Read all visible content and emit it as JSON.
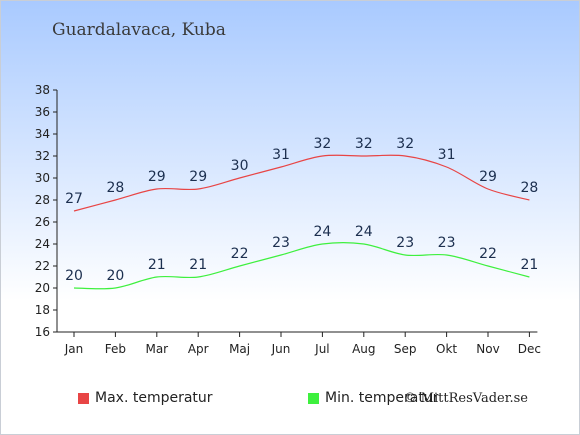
{
  "header": {
    "location": "Guardalavaca, Kuba"
  },
  "legend": {
    "max_label": "Max. temperatur",
    "min_label": "Min. temperatur"
  },
  "credit": "© MittResVader.se",
  "colors": {
    "max": "#e84545",
    "min": "#3ef03e",
    "axis": "#222222",
    "label": "#1c2f4f"
  },
  "chart_data": {
    "type": "line",
    "categories": [
      "Jan",
      "Feb",
      "Mar",
      "Apr",
      "Maj",
      "Jun",
      "Jul",
      "Aug",
      "Sep",
      "Okt",
      "Nov",
      "Dec"
    ],
    "ylim": [
      16,
      38
    ],
    "yticks": [
      16,
      18,
      20,
      22,
      24,
      26,
      28,
      30,
      32,
      34,
      36,
      38
    ],
    "series": [
      {
        "name": "Max. temperatur",
        "values": [
          27,
          28,
          29,
          29,
          30,
          31,
          32,
          32,
          32,
          31,
          29,
          28
        ]
      },
      {
        "name": "Min. temperatur",
        "values": [
          20,
          20,
          21,
          21,
          22,
          23,
          24,
          24,
          23,
          23,
          22,
          21
        ]
      }
    ],
    "grid": false,
    "legend_position": "bottom"
  }
}
